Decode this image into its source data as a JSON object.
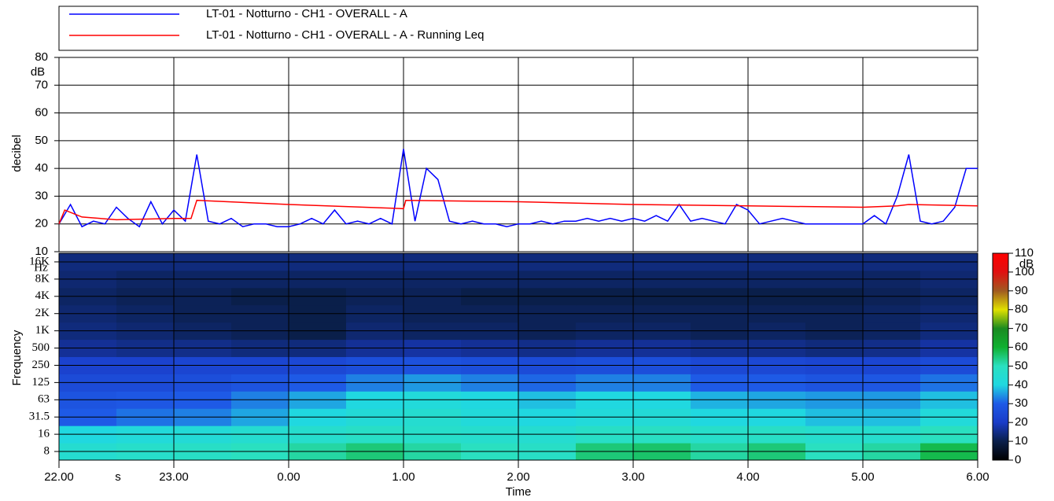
{
  "chart_data": [
    {
      "type": "line",
      "ylabel": "decibel",
      "y_unit": "dB",
      "xlim": [
        22,
        30
      ],
      "xticks": [
        22,
        23,
        24,
        25,
        26,
        27,
        28,
        29,
        30
      ],
      "ylim": [
        10,
        80
      ],
      "yticks": [
        10,
        20,
        30,
        40,
        50,
        60,
        70,
        80
      ],
      "grid": true,
      "series": [
        {
          "name": "LT-01 - Notturno - CH1 - OVERALL - A",
          "color": "#0000ff",
          "x": [
            22.0,
            22.1,
            22.2,
            22.3,
            22.4,
            22.5,
            22.6,
            22.7,
            22.8,
            22.9,
            23.0,
            23.1,
            23.2,
            23.3,
            23.4,
            23.5,
            23.6,
            23.7,
            23.8,
            23.9,
            24.0,
            24.1,
            24.2,
            24.3,
            24.4,
            24.5,
            24.6,
            24.7,
            24.8,
            24.9,
            25.0,
            25.1,
            25.2,
            25.3,
            25.4,
            25.5,
            25.6,
            25.7,
            25.8,
            25.9,
            26.0,
            26.1,
            26.2,
            26.3,
            26.4,
            26.5,
            26.6,
            26.7,
            26.8,
            26.9,
            27.0,
            27.1,
            27.2,
            27.3,
            27.4,
            27.5,
            27.6,
            27.7,
            27.8,
            27.9,
            28.0,
            28.1,
            28.2,
            28.3,
            28.4,
            28.5,
            28.6,
            28.7,
            28.8,
            28.9,
            29.0,
            29.1,
            29.2,
            29.3,
            29.4,
            29.5,
            29.6,
            29.7,
            29.8,
            29.9,
            30.0
          ],
          "values": [
            20,
            27,
            19,
            21,
            20,
            26,
            22,
            19,
            28,
            20,
            25,
            21,
            45,
            21,
            20,
            22,
            19,
            20,
            20,
            19,
            19,
            20,
            22,
            20,
            25,
            20,
            21,
            20,
            22,
            20,
            47,
            21,
            40,
            36,
            21,
            20,
            21,
            20,
            20,
            19,
            20,
            20,
            21,
            20,
            21,
            21,
            22,
            21,
            22,
            21,
            22,
            21,
            23,
            21,
            27,
            21,
            22,
            21,
            20,
            27,
            25,
            20,
            21,
            22,
            21,
            20,
            20,
            20,
            20,
            20,
            20,
            23,
            20,
            30,
            45,
            21,
            20,
            21,
            26,
            40,
            40
          ]
        },
        {
          "name": "LT-01 - Notturno - CH1 - OVERALL - A - Running Leq",
          "color": "#ff0000",
          "x": [
            22.0,
            22.05,
            22.2,
            22.5,
            23.0,
            23.15,
            23.2,
            24.0,
            25.0,
            25.02,
            26.0,
            27.0,
            28.0,
            29.0,
            29.3,
            29.4,
            30.0
          ],
          "values": [
            20,
            25,
            22.5,
            21.5,
            22,
            22,
            28.5,
            27,
            25.5,
            28.5,
            28,
            27,
            26.5,
            26,
            26.5,
            27,
            26.5
          ]
        }
      ]
    },
    {
      "type": "heatmap",
      "xlabel": "Time",
      "x_unit": "s",
      "ylabel": "Frequency",
      "y_unit": "Hz",
      "xlim": [
        22,
        30
      ],
      "xticks": [
        {
          "value": 22,
          "label": "22.00"
        },
        {
          "value": 23,
          "label": "23.00"
        },
        {
          "value": 24,
          "label": "0.00"
        },
        {
          "value": 25,
          "label": "1.00"
        },
        {
          "value": 26,
          "label": "2.00"
        },
        {
          "value": 27,
          "label": "3.00"
        },
        {
          "value": 28,
          "label": "4.00"
        },
        {
          "value": 29,
          "label": "5.00"
        },
        {
          "value": 30,
          "label": "6.00"
        }
      ],
      "bins": [
        22,
        22.5,
        23,
        23.5,
        24,
        24.5,
        25,
        25.5,
        26,
        26.5,
        27,
        27.5,
        28,
        28.5,
        29,
        29.5,
        30
      ],
      "y_categories": [
        "8",
        "16",
        "31.5",
        "63",
        "125",
        "250",
        "500",
        "1K",
        "2K",
        "4K",
        "8K",
        "16K"
      ],
      "z": [
        [
          45,
          47,
          48,
          50,
          52,
          55,
          52,
          50,
          48,
          55,
          56,
          52,
          55,
          50,
          52,
          58
        ],
        [
          40,
          42,
          43,
          45,
          46,
          48,
          47,
          46,
          45,
          48,
          49,
          47,
          48,
          46,
          46,
          50
        ],
        [
          30,
          32,
          33,
          36,
          40,
          43,
          45,
          42,
          40,
          42,
          43,
          40,
          40,
          38,
          38,
          42
        ],
        [
          28,
          29,
          30,
          33,
          36,
          40,
          42,
          40,
          38,
          40,
          40,
          37,
          36,
          35,
          35,
          38
        ],
        [
          25,
          25,
          26,
          28,
          30,
          33,
          35,
          33,
          31,
          33,
          33,
          30,
          30,
          28,
          29,
          32
        ],
        [
          22,
          22,
          23,
          23,
          24,
          26,
          27,
          26,
          25,
          26,
          26,
          24,
          24,
          23,
          23,
          25
        ],
        [
          16,
          15,
          15,
          14,
          14,
          16,
          17,
          16,
          15,
          16,
          16,
          15,
          15,
          14,
          15,
          17
        ],
        [
          14,
          13,
          12,
          11,
          10,
          13,
          12,
          12,
          11,
          12,
          12,
          11,
          12,
          11,
          12,
          14
        ],
        [
          13,
          12,
          11,
          11,
          10,
          12,
          11,
          11,
          11,
          11,
          11,
          11,
          11,
          11,
          12,
          13
        ],
        [
          12,
          11,
          11,
          10,
          10,
          11,
          11,
          10,
          10,
          10,
          10,
          10,
          10,
          10,
          11,
          12
        ],
        [
          13,
          12,
          12,
          12,
          12,
          12,
          12,
          12,
          12,
          12,
          12,
          12,
          12,
          12,
          12,
          13
        ],
        [
          14,
          14,
          14,
          14,
          14,
          14,
          14,
          14,
          14,
          14,
          14,
          14,
          14,
          14,
          14,
          14
        ]
      ],
      "clim": [
        0,
        110
      ],
      "cticks": [
        0,
        10,
        20,
        30,
        40,
        50,
        60,
        70,
        80,
        90,
        100,
        110
      ],
      "c_unit": "dB",
      "colormap": [
        "#000000",
        "#0a1f4a",
        "#1a3cc8",
        "#1e5ae6",
        "#20d8e0",
        "#2ae0c0",
        "#10b030",
        "#1a8a20",
        "#e0e000",
        "#a05a20",
        "#e01010",
        "#ff0000"
      ]
    }
  ]
}
